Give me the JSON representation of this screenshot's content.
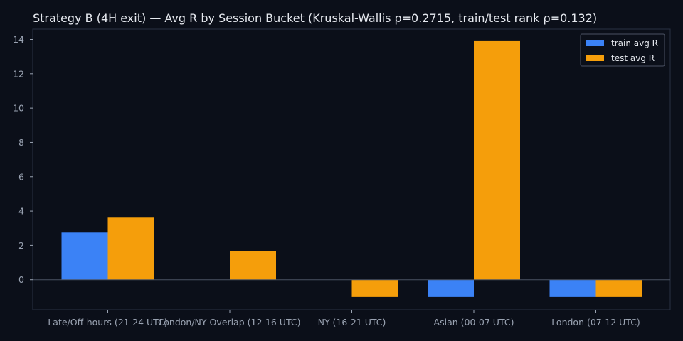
{
  "chart_data": {
    "type": "bar",
    "title": "Strategy B (4H exit) — Avg R by Session Bucket (Kruskal-Wallis p=0.2715, train/test rank ρ=0.132)",
    "xlabel": "",
    "ylabel": "",
    "categories": [
      "Late/Off-hours (21-24 UTC)",
      "London/NY Overlap (12-16 UTC)",
      "NY (16-21 UTC)",
      "Asian (00-07 UTC)",
      "London (07-12 UTC)"
    ],
    "series": [
      {
        "name": "train avg R",
        "color": "#3b82f6",
        "values": [
          2.75,
          0.0,
          0.0,
          -1.0,
          -1.0
        ]
      },
      {
        "name": "test avg R",
        "color": "#f59e0b",
        "values": [
          3.62,
          1.67,
          -1.0,
          13.9,
          -1.0
        ]
      }
    ],
    "ylim": [
      -1.75,
      14.6
    ],
    "yticks": [
      0,
      2,
      4,
      6,
      8,
      10,
      12,
      14
    ],
    "grid": false,
    "legend_position": "top-right",
    "colors": {
      "background": "#0b0f19",
      "axes": "#2a3142",
      "zero_line": "#4b5263",
      "text": "#e6e9ef",
      "tick_text": "#9aa3b2",
      "legend_bg": "#0b0f19",
      "legend_border": "#4b5263"
    }
  }
}
